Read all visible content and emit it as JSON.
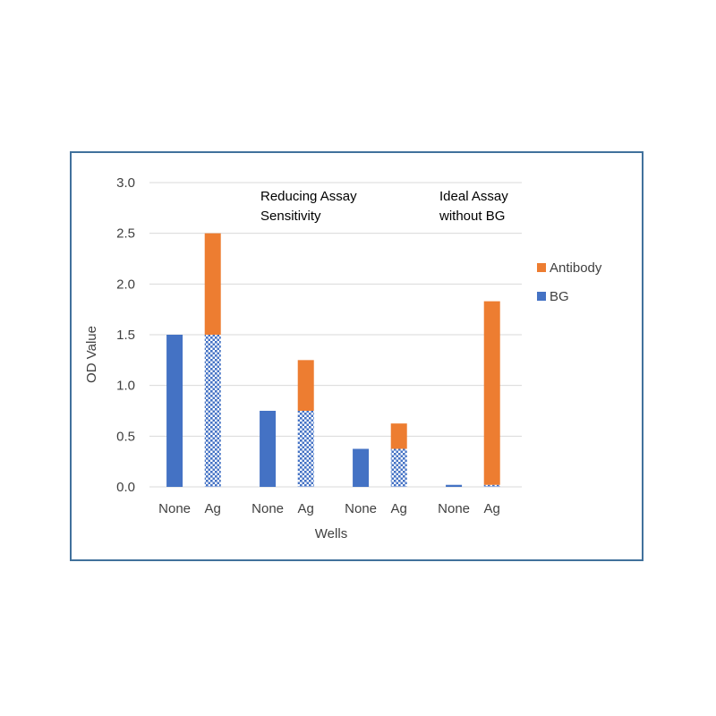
{
  "chart_data": {
    "type": "bar",
    "stacked": true,
    "title": "",
    "xlabel": "Wells",
    "ylabel": "OD Value",
    "ylim": [
      0,
      3.0
    ],
    "yticks": [
      "0.0",
      "0.5",
      "1.0",
      "1.5",
      "2.0",
      "2.5",
      "3.0"
    ],
    "grid": true,
    "legend_position": "right",
    "categories": [
      "None",
      "Ag",
      "None",
      "Ag",
      "None",
      "Ag",
      "None",
      "Ag"
    ],
    "series": [
      {
        "name": "BG",
        "color": "#4472c4",
        "values": [
          1.5,
          1.5,
          0.75,
          0.75,
          0.375,
          0.375,
          0.02,
          0.02
        ],
        "pattern_on_ag": true
      },
      {
        "name": "Antibody",
        "color": "#ed7d31",
        "values": [
          0,
          1.0,
          0,
          0.5,
          0,
          0.25,
          0,
          1.81
        ]
      }
    ],
    "annotations": [
      {
        "lines": [
          "Reducing Assay",
          "Sensitivity"
        ]
      },
      {
        "lines": [
          "Ideal Assay",
          "without BG"
        ]
      }
    ]
  }
}
